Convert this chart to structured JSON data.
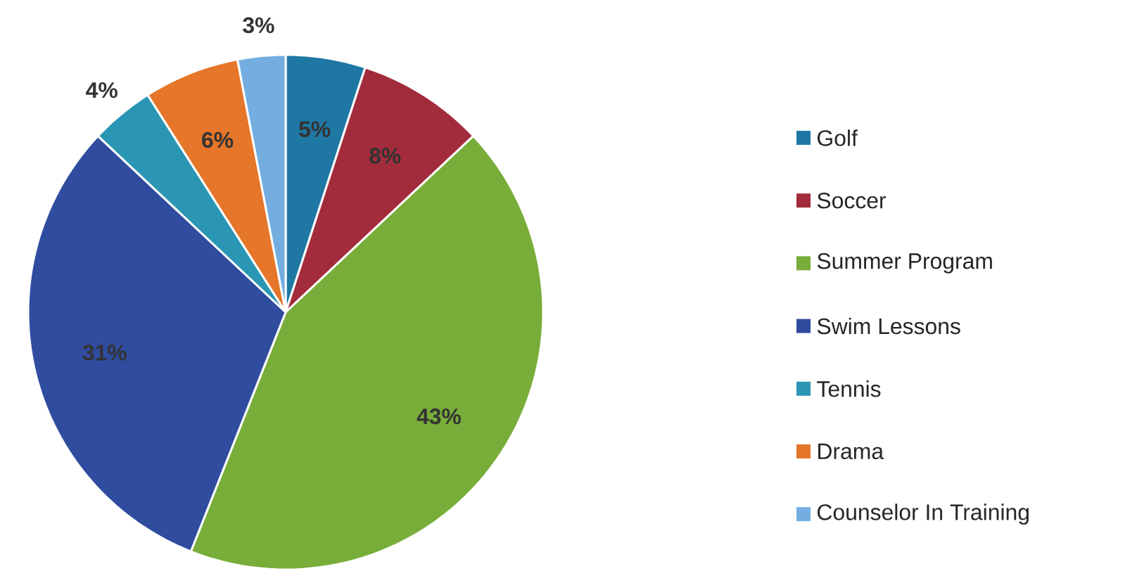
{
  "chart_data": {
    "type": "pie",
    "categories": [
      "Golf",
      "Soccer",
      "Summer Program",
      "Swim Lessons",
      "Tennis",
      "Drama",
      "Counselor In Training"
    ],
    "values": [
      5,
      8,
      43,
      31,
      4,
      6,
      3
    ],
    "colors": [
      "#1f78a4",
      "#a32c3c",
      "#78ad3a",
      "#2f4c9f",
      "#2a96b4",
      "#e5762a",
      "#74aee0"
    ],
    "value_labels": [
      "5%",
      "8%",
      "43%",
      "31%",
      "4%",
      "6%",
      "3%"
    ],
    "legend": "right"
  }
}
